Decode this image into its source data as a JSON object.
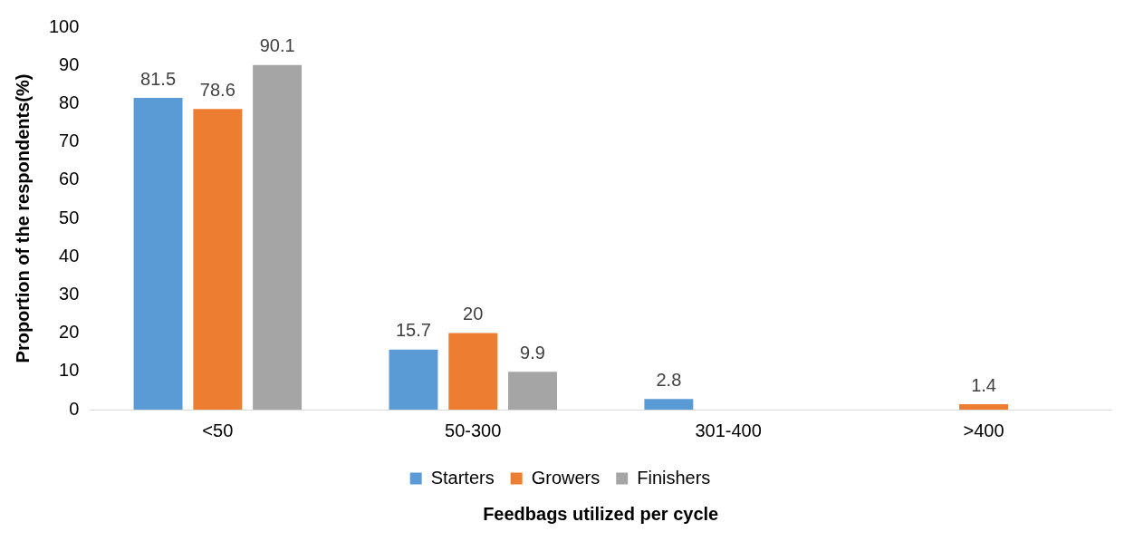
{
  "chart_data": {
    "type": "bar",
    "xlabel": "Feedbags utilized per cycle",
    "ylabel": "Proportion of the respondents(%)",
    "categories": [
      "<50",
      "50-300",
      "301-400",
      ">400"
    ],
    "series": [
      {
        "name": "Starters",
        "color": "#5b9bd5",
        "values": [
          81.5,
          15.7,
          2.8,
          null
        ]
      },
      {
        "name": "Growers",
        "color": "#ed7d31",
        "values": [
          78.6,
          20,
          null,
          1.4
        ]
      },
      {
        "name": "Finishers",
        "color": "#a5a5a5",
        "values": [
          90.1,
          9.9,
          null,
          null
        ]
      }
    ],
    "ylim": [
      0,
      100
    ],
    "yticks": [
      0,
      10,
      20,
      30,
      40,
      50,
      60,
      70,
      80,
      90,
      100
    ],
    "grid": false,
    "legend": "bottom",
    "data_labels": true
  }
}
